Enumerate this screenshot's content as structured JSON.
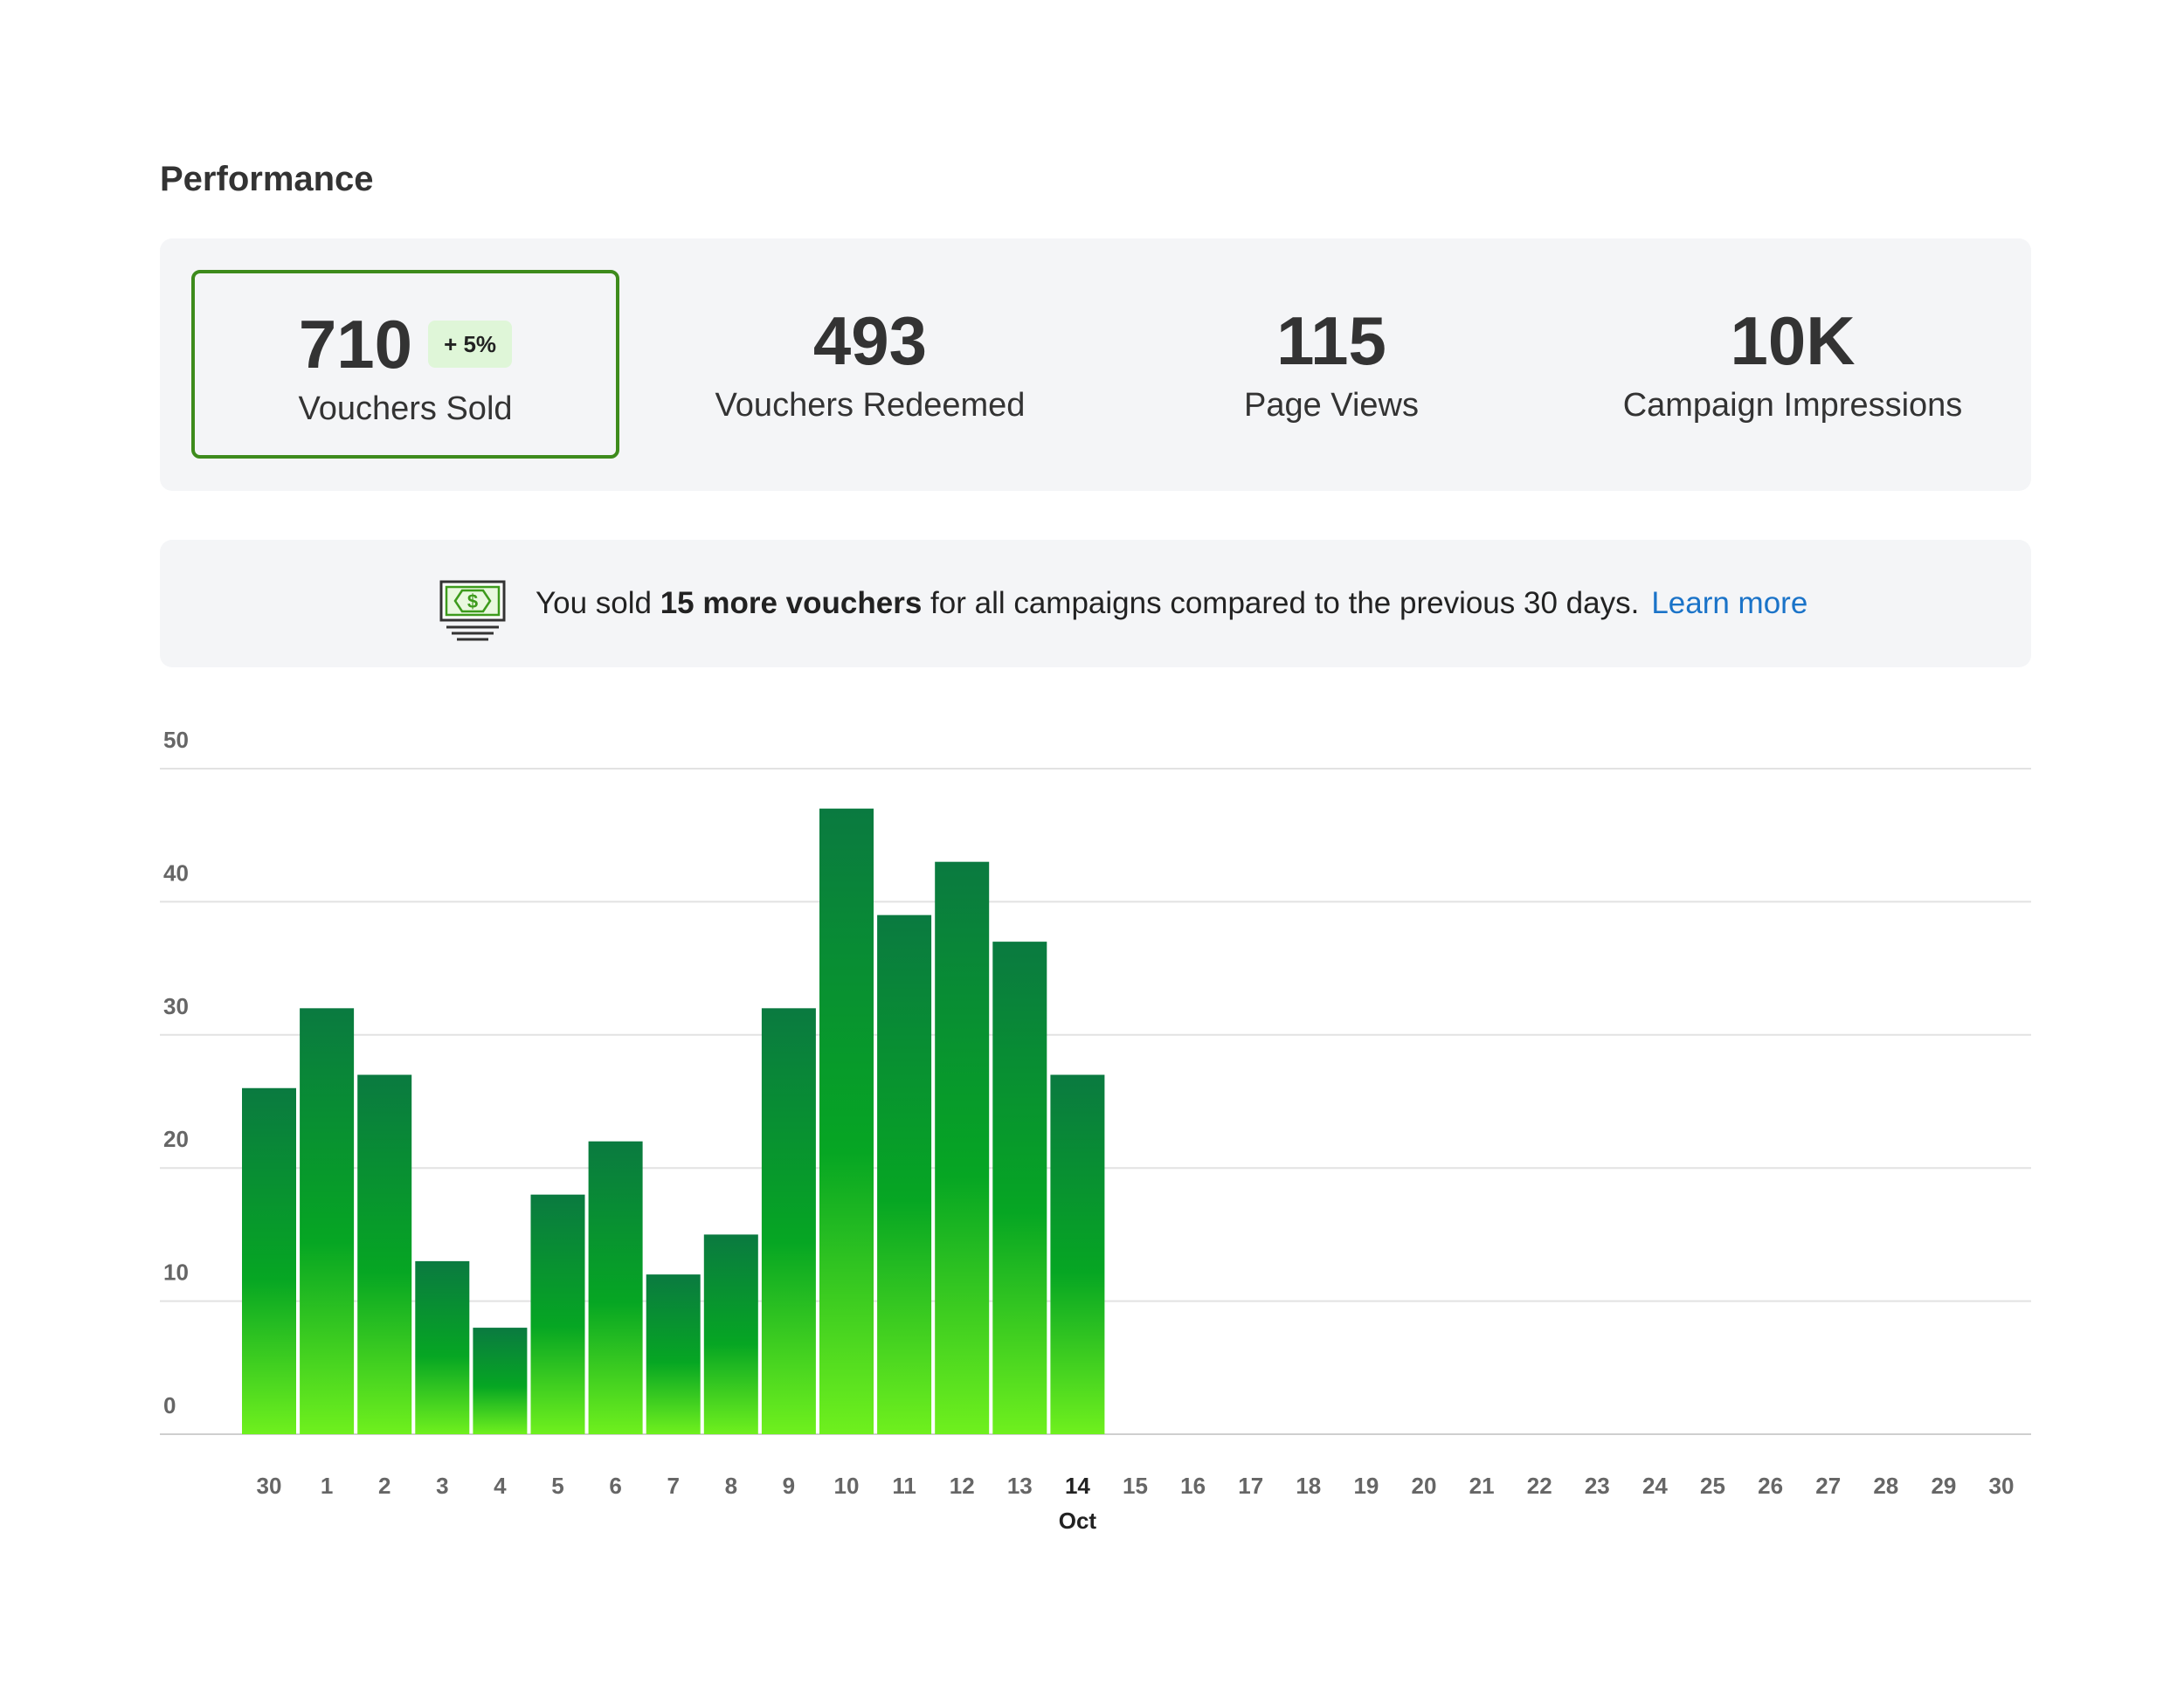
{
  "section": {
    "title": "Performance"
  },
  "metrics": [
    {
      "value": "710",
      "badge": "+ 5%",
      "label": "Vouchers Sold",
      "selected": true
    },
    {
      "value": "493",
      "label": "Vouchers Redeemed"
    },
    {
      "value": "115",
      "label": "Page Views"
    },
    {
      "value": "10K",
      "label": "Campaign Impressions"
    }
  ],
  "banner": {
    "icon": "cash-icon",
    "text_before": "You sold ",
    "text_bold": "15 more vouchers",
    "text_after": " for all campaigns compared to the previous 30 days.",
    "link": "Learn more"
  },
  "colors": {
    "bar_top": "#0a7a40",
    "bar_mid": "#06a623",
    "bar_bottom": "#6ff01e",
    "selected_border": "#3d8b1c",
    "link": "#1a73c8"
  },
  "chart_data": {
    "type": "bar",
    "categories": [
      "30",
      "1",
      "2",
      "3",
      "4",
      "5",
      "6",
      "7",
      "8",
      "9",
      "10",
      "11",
      "12",
      "13",
      "14",
      "15",
      "16",
      "17",
      "18",
      "19",
      "20",
      "21",
      "22",
      "23",
      "24",
      "25",
      "26",
      "27",
      "28",
      "29",
      "30"
    ],
    "values": [
      26,
      32,
      27,
      13,
      8,
      18,
      22,
      12,
      15,
      32,
      47,
      39,
      43,
      37,
      27,
      null,
      null,
      null,
      null,
      null,
      null,
      null,
      null,
      null,
      null,
      null,
      null,
      null,
      null,
      null,
      null
    ],
    "highlight_category_index": 14,
    "month_label": "Oct",
    "ylim": [
      0,
      50
    ],
    "yticks": [
      0,
      10,
      20,
      30,
      40,
      50
    ],
    "grid": true
  }
}
